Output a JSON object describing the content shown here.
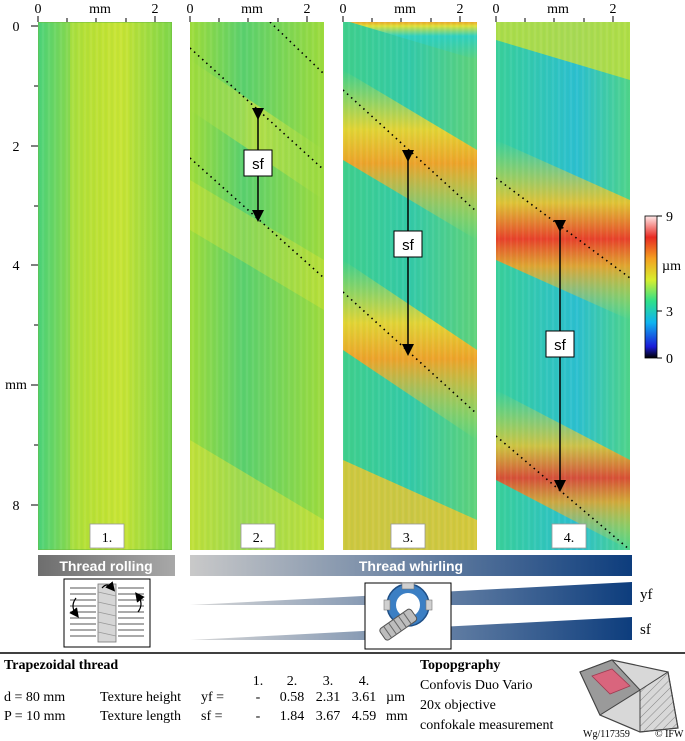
{
  "axes": {
    "x_unit": "mm",
    "x_ticks": [
      "0",
      "2"
    ],
    "y_unit": "mm",
    "y_ticks": [
      "0",
      "2",
      "4",
      "8"
    ]
  },
  "panels": [
    {
      "label": "1.",
      "sf_label": ""
    },
    {
      "label": "2.",
      "sf_label": "sf"
    },
    {
      "label": "3.",
      "sf_label": "sf"
    },
    {
      "label": "4.",
      "sf_label": "sf"
    }
  ],
  "colorbar": {
    "max": "9",
    "unit": "µm",
    "mid": "3",
    "min": "0"
  },
  "process_bars": {
    "rolling": "Thread rolling",
    "whirling": "Thread whirling",
    "rolling_color": "#8a8a8a",
    "whirling_color": "#0d3d7d"
  },
  "trend_labels": {
    "yf": "yf",
    "sf": "sf"
  },
  "specs": {
    "title": "Trapezoidal thread",
    "d": "d = 80 mm",
    "P": "P = 10 mm",
    "header": [
      "1.",
      "2.",
      "3.",
      "4."
    ],
    "rows": [
      {
        "name": "Texture height",
        "symbol": "yf =",
        "values": [
          "-",
          "0.58",
          "2.31",
          "3.61"
        ],
        "unit": "µm"
      },
      {
        "name": "Texture length",
        "symbol": "sf =",
        "values": [
          "-",
          "1.84",
          "3.67",
          "4.59"
        ],
        "unit": "mm"
      }
    ]
  },
  "topography": {
    "title": "Topopgraphy",
    "lines": [
      "Confovis Duo Vario",
      "20x objective",
      "confokale measurement"
    ]
  },
  "footer": {
    "id": "Wg/117359",
    "copyright": "© IFW"
  }
}
